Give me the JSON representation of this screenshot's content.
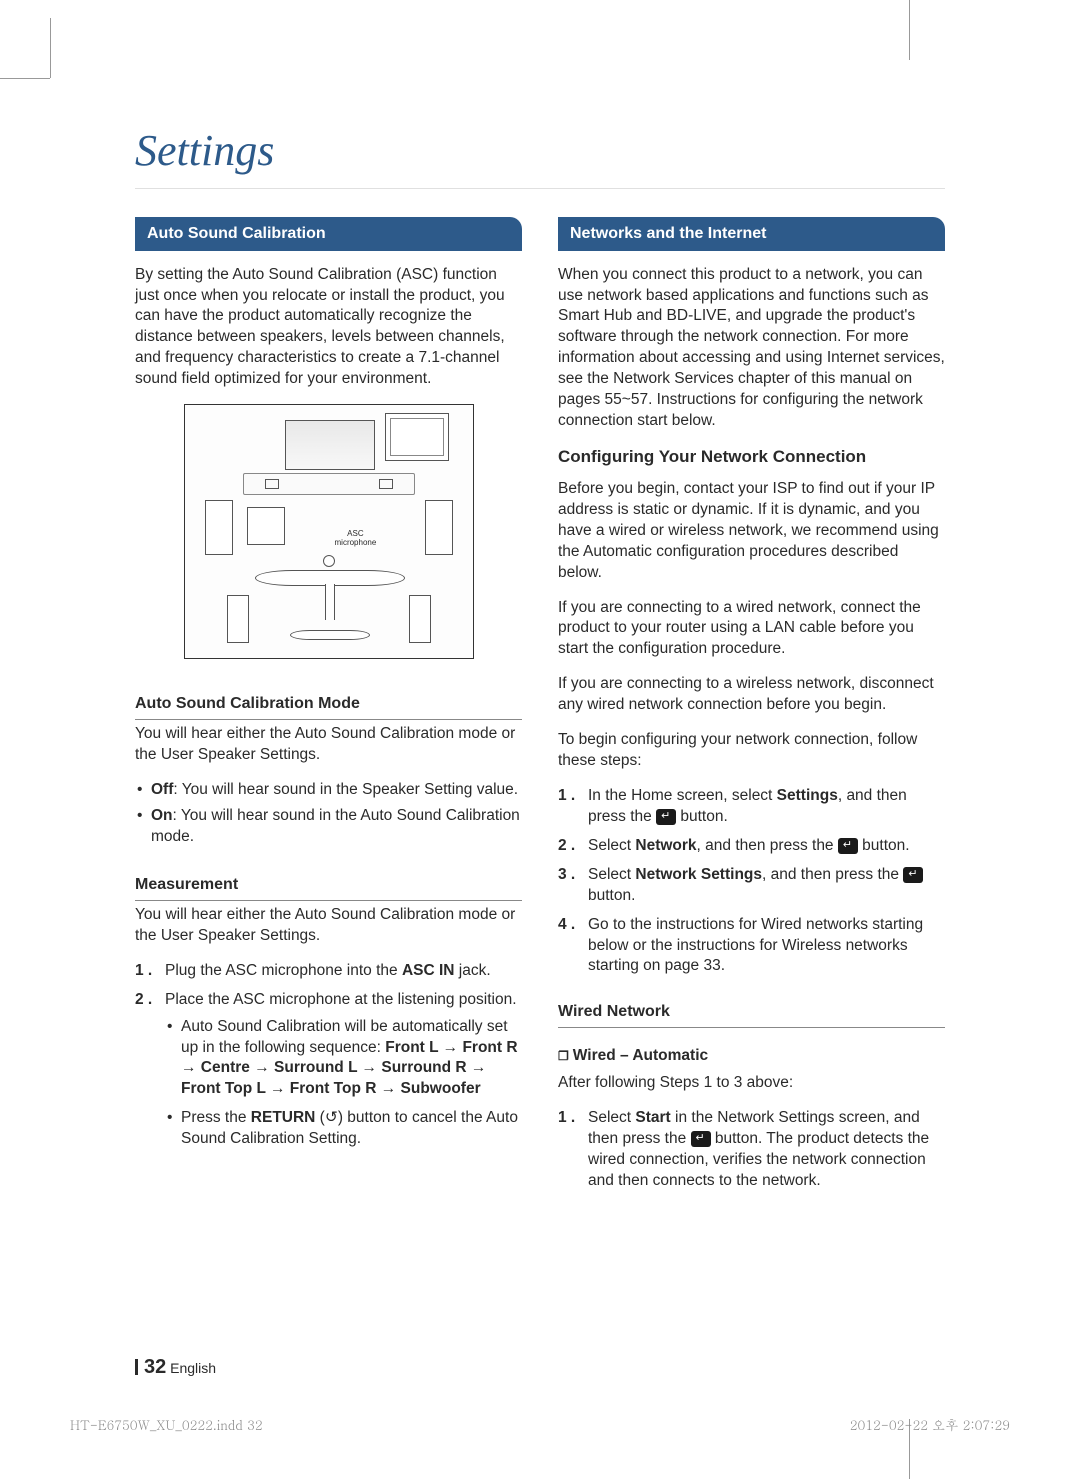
{
  "page": {
    "title": "Settings",
    "page_number": "32",
    "page_lang": "English",
    "footer_file": "HT-E6750W_XU_0222.indd   32",
    "footer_timestamp": "2012-02-22   오후 2:07:29"
  },
  "left": {
    "header": "Auto Sound Calibration",
    "intro": "By setting the Auto Sound Calibration (ASC) function just once when you relocate or install the product, you can have the product automatically recognize the distance between speakers, levels between channels, and frequency characteristics to create a 7.1-channel sound field optimized for your environment.",
    "diagram_label1": "ASC",
    "diagram_label2": "microphone",
    "mode_heading": "Auto Sound Calibration Mode",
    "mode_intro": "You will hear either the Auto Sound Calibration mode or the User Speaker Settings.",
    "mode_off_b": "Off",
    "mode_off": ": You will hear sound in the Speaker Setting value.",
    "mode_on_b": "On",
    "mode_on": ": You will hear sound in the Auto Sound Calibration mode.",
    "measure_heading": "Measurement",
    "measure_intro": "You will hear either the Auto Sound Calibration mode or the User Speaker Settings.",
    "step1a": "Plug the ASC microphone into the ",
    "step1b": "ASC IN",
    "step1c": " jack.",
    "step2": "Place the ASC microphone at the listening position.",
    "seq_a": "Auto Sound Calibration will be automatically set up in the following sequence: ",
    "seq_b": "Front L → Front R → Centre → Surround L → Surround R → Front Top L → Front Top R → Subwoofer",
    "ret_a": "Press the ",
    "ret_b": "RETURN",
    "ret_c": " (  ) button to cancel the Auto Sound Calibration Setting.",
    "ret_sym": "↺"
  },
  "right": {
    "header": "Networks and the Internet",
    "intro": "When you connect this product to a network, you can use network based applications and functions such as Smart Hub and BD-LIVE, and upgrade the product's software through the network connection. For more information about accessing and using Internet services, see the Network Services chapter of this manual on pages 55~57. Instructions for configuring the network connection start below.",
    "conf_heading": "Configuring Your Network Connection",
    "conf_p1": "Before you begin, contact your ISP to find out if your IP address is static or dynamic. If it is dynamic, and you have a wired or wireless network, we recommend using the Automatic configuration procedures described below.",
    "conf_p2": "If you are connecting to a wired network, connect the product to your router using a LAN cable before you start the configuration procedure.",
    "conf_p3": "If you are connecting to a wireless network, disconnect any wired network connection before you begin.",
    "conf_p4": "To begin configuring your network connection, follow these steps:",
    "s1a": "In the Home screen, select ",
    "s1b": "Settings",
    "s1c": ", and then press the ",
    "s1d": " button.",
    "s2a": "Select ",
    "s2b": "Network",
    "s2c": ", and then press the ",
    "s2d": " button.",
    "s3a": "Select ",
    "s3b": "Network Settings",
    "s3c": ", and then press the ",
    "s3d": " button.",
    "s4": "Go to the instructions for Wired networks starting below or the instructions for Wireless networks starting on page 33.",
    "wired_heading": "Wired Network",
    "wired_auto": "Wired – Automatic",
    "wired_after": "After following Steps 1 to 3 above:",
    "w1a": "Select ",
    "w1b": "Start",
    "w1c": " in the Network Settings screen, and then press the ",
    "w1d": " button. The product detects the wired connection, verifies the network connection and then connects to the network."
  }
}
